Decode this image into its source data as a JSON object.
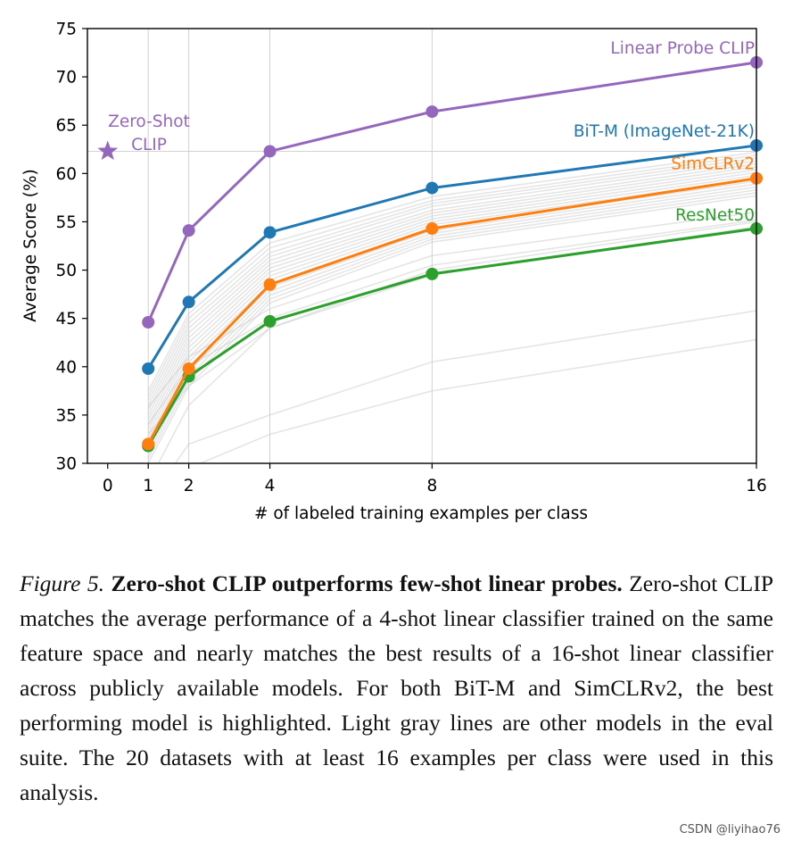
{
  "chart_data": {
    "type": "line",
    "xlabel": "# of labeled training examples per class",
    "ylabel": "Average Score (%)",
    "x_ticks": [
      0,
      1,
      2,
      4,
      8,
      16
    ],
    "y_ticks": [
      30,
      35,
      40,
      45,
      50,
      55,
      60,
      65,
      70,
      75
    ],
    "xlim": [
      -0.5,
      16
    ],
    "ylim": [
      30,
      75
    ],
    "grid": true,
    "series": [
      {
        "name": "Linear Probe CLIP",
        "color": "#9467bd",
        "x": [
          1,
          2,
          4,
          8,
          16
        ],
        "values": [
          44.6,
          54.1,
          62.3,
          66.4,
          71.5
        ]
      },
      {
        "name": "BiT-M (ImageNet-21K)",
        "color": "#1f77b4",
        "x": [
          1,
          2,
          4,
          8,
          16
        ],
        "values": [
          39.8,
          46.7,
          53.9,
          58.5,
          62.9
        ]
      },
      {
        "name": "SimCLRv2",
        "color": "#ff7f0e",
        "x": [
          1,
          2,
          4,
          8,
          16
        ],
        "values": [
          32.0,
          39.8,
          48.5,
          54.3,
          59.5
        ]
      },
      {
        "name": "ResNet50",
        "color": "#2ca02c",
        "x": [
          1,
          2,
          4,
          8,
          16
        ],
        "values": [
          31.8,
          39.0,
          44.7,
          49.6,
          54.3
        ]
      }
    ],
    "zero_shot": {
      "name_line1": "Zero-Shot",
      "name_line2": "CLIP",
      "x": 0,
      "value": 62.3,
      "color": "#9467bd"
    },
    "background_models": {
      "color": "#d0d0d0",
      "x": [
        1,
        2,
        4,
        8,
        16
      ],
      "lines": [
        [
          37.5,
          45.5,
          52.8,
          57.6,
          62.2
        ],
        [
          37.0,
          45.0,
          52.3,
          57.2,
          61.9
        ],
        [
          36.5,
          44.5,
          51.8,
          56.9,
          61.6
        ],
        [
          36.0,
          44.0,
          51.4,
          56.6,
          61.3
        ],
        [
          35.5,
          43.5,
          51.0,
          56.2,
          61.0
        ],
        [
          35.0,
          43.0,
          50.6,
          55.9,
          60.7
        ],
        [
          34.5,
          42.5,
          50.2,
          55.6,
          60.4
        ],
        [
          34.0,
          42.0,
          49.8,
          55.3,
          60.1
        ],
        [
          33.5,
          41.5,
          49.4,
          55.0,
          59.8
        ],
        [
          33.0,
          41.0,
          49.0,
          54.7,
          59.5
        ],
        [
          32.5,
          40.5,
          48.6,
          54.4,
          59.2
        ],
        [
          32.0,
          40.0,
          48.2,
          54.1,
          58.9
        ],
        [
          31.5,
          39.5,
          47.8,
          53.8,
          58.6
        ],
        [
          31.0,
          39.0,
          47.4,
          53.5,
          58.3
        ],
        [
          30.5,
          38.5,
          47.0,
          53.2,
          58.0
        ],
        [
          30.0,
          38.0,
          46.6,
          52.9,
          57.7
        ],
        [
          35.8,
          41.0,
          46.0,
          51.5,
          56.0
        ],
        [
          34.0,
          40.0,
          45.0,
          50.5,
          55.2
        ],
        [
          33.0,
          38.0,
          44.0,
          49.5,
          54.5
        ],
        [
          28.0,
          36.0,
          44.0,
          50.0,
          55.0
        ],
        [
          26.0,
          32.0,
          35.0,
          40.5,
          45.8
        ],
        [
          24.0,
          29.5,
          33.0,
          37.5,
          42.8
        ]
      ]
    }
  },
  "caption": {
    "label": "Figure 5.",
    "title": "Zero-shot CLIP outperforms few-shot linear probes.",
    "body": "Zero-shot CLIP matches the average performance of a 4-shot linear classifier trained on the same feature space and nearly matches the best results of a 16-shot linear classifier across publicly available models.  For both BiT-M and SimCLRv2, the best performing model is highlighted. Light gray lines are other models in the eval suite.  The 20 datasets with at least 16 examples per class were used in this analysis."
  },
  "watermark": "CSDN @liyihao76"
}
